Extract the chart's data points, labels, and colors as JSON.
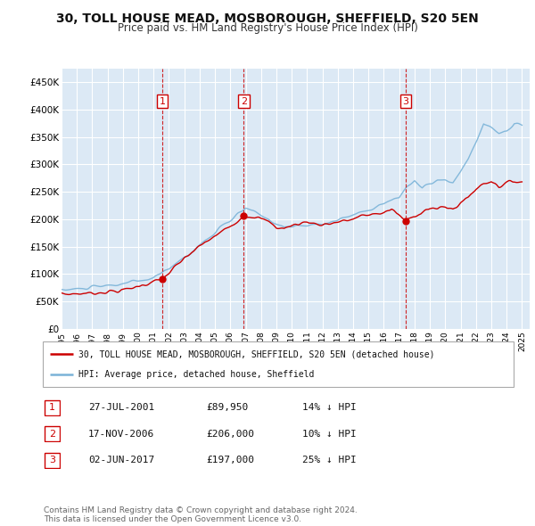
{
  "title": "30, TOLL HOUSE MEAD, MOSBOROUGH, SHEFFIELD, S20 5EN",
  "subtitle": "Price paid vs. HM Land Registry's House Price Index (HPI)",
  "ylabel_ticks": [
    "£0",
    "£50K",
    "£100K",
    "£150K",
    "£200K",
    "£250K",
    "£300K",
    "£350K",
    "£400K",
    "£450K"
  ],
  "ytick_values": [
    0,
    50000,
    100000,
    150000,
    200000,
    250000,
    300000,
    350000,
    400000,
    450000
  ],
  "ylim": [
    0,
    475000
  ],
  "xlim_start": 1995.0,
  "xlim_end": 2025.5,
  "background_color": "#ffffff",
  "plot_bg_color": "#dce9f5",
  "grid_color": "#ffffff",
  "hpi_color": "#7ab3d8",
  "price_color": "#cc0000",
  "transaction_line_color": "#cc0000",
  "transaction_box_color": "#cc0000",
  "transactions": [
    {
      "id": 1,
      "date_label": "27-JUL-2001",
      "year": 2001.57,
      "price": 89950,
      "pct": "14%",
      "direction": "↓"
    },
    {
      "id": 2,
      "date_label": "17-NOV-2006",
      "year": 2006.88,
      "price": 206000,
      "pct": "10%",
      "direction": "↓"
    },
    {
      "id": 3,
      "date_label": "02-JUN-2017",
      "year": 2017.42,
      "price": 197000,
      "pct": "25%",
      "direction": "↓"
    }
  ],
  "legend_property_label": "30, TOLL HOUSE MEAD, MOSBOROUGH, SHEFFIELD, S20 5EN (detached house)",
  "legend_hpi_label": "HPI: Average price, detached house, Sheffield",
  "footnote": "Contains HM Land Registry data © Crown copyright and database right 2024.\nThis data is licensed under the Open Government Licence v3.0.",
  "xtick_years": [
    1995,
    1996,
    1997,
    1998,
    1999,
    2000,
    2001,
    2002,
    2003,
    2004,
    2005,
    2006,
    2007,
    2008,
    2009,
    2010,
    2011,
    2012,
    2013,
    2014,
    2015,
    2016,
    2017,
    2018,
    2019,
    2020,
    2021,
    2022,
    2023,
    2024,
    2025
  ]
}
